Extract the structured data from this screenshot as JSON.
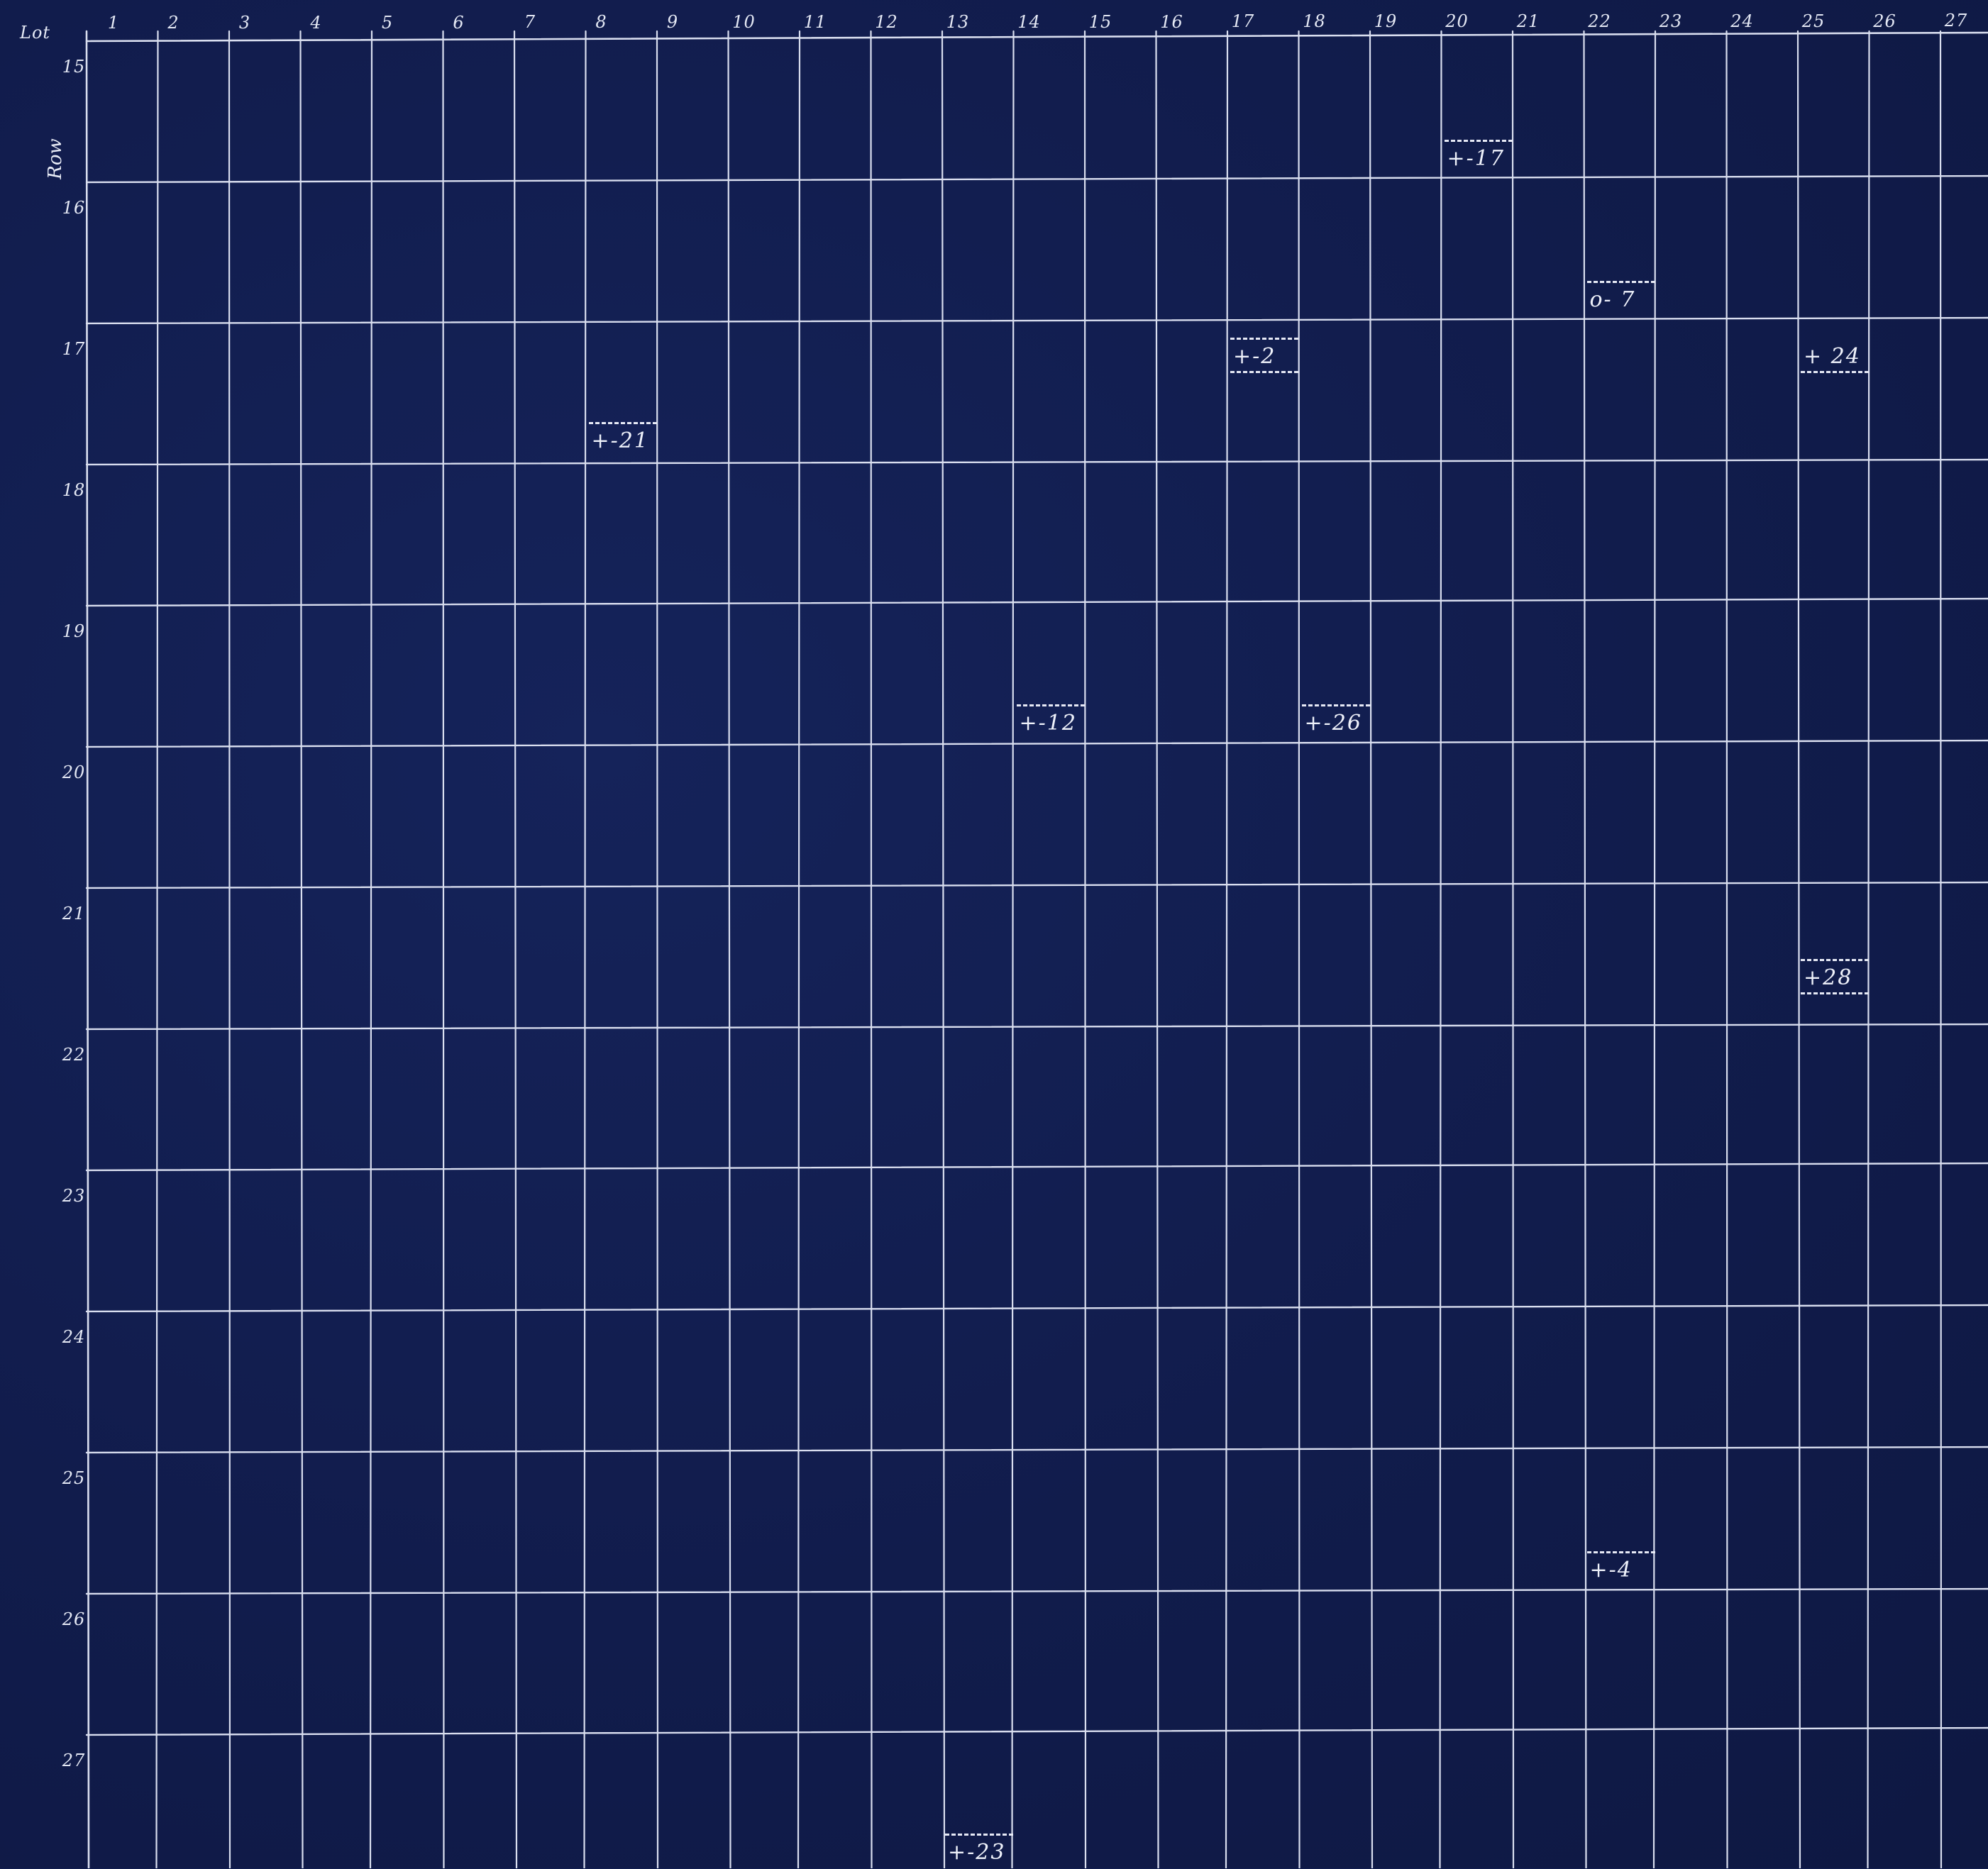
{
  "header": {
    "lot_label": "Lot",
    "row_label": "Row"
  },
  "lots": [
    "1",
    "2",
    "3",
    "4",
    "5",
    "6",
    "7",
    "8",
    "9",
    "10",
    "11",
    "12",
    "13",
    "14",
    "15",
    "16",
    "17",
    "18",
    "19",
    "20",
    "21",
    "22",
    "23",
    "24",
    "25",
    "26",
    "27"
  ],
  "rows": [
    "15",
    "16",
    "17",
    "18",
    "19",
    "20",
    "21",
    "22",
    "23",
    "24",
    "25",
    "26",
    "27"
  ],
  "marks": [
    {
      "text": "+-17",
      "lot": 20,
      "row": 15,
      "edge": "bottom",
      "border": "top"
    },
    {
      "text": "+ 24",
      "lot": 25,
      "row": 16,
      "edge": "top",
      "border": "bottom"
    },
    {
      "text": "+-2",
      "lot": 17,
      "row": 16,
      "edge": "top",
      "border": "both"
    },
    {
      "text": "o- 7",
      "lot": 22,
      "row": 16,
      "edge": "bottom",
      "border": "top"
    },
    {
      "text": "+-21",
      "lot": 8,
      "row": 17,
      "edge": "bottom",
      "border": "top"
    },
    {
      "text": "+-12",
      "lot": 14,
      "row": 19,
      "edge": "bottom",
      "border": "top"
    },
    {
      "text": "+-26",
      "lot": 18,
      "row": 19,
      "edge": "bottom",
      "border": "top"
    },
    {
      "text": "+28",
      "lot": 25,
      "row": 21,
      "edge": "middle",
      "border": "both"
    },
    {
      "text": "+-4",
      "lot": 22,
      "row": 25,
      "edge": "bottom",
      "border": "top"
    },
    {
      "text": "+-23",
      "lot": 13,
      "row": 27,
      "edge": "bottom",
      "border": "top"
    }
  ],
  "colors": {
    "paper": "#121f52",
    "line": "#d9deef"
  }
}
